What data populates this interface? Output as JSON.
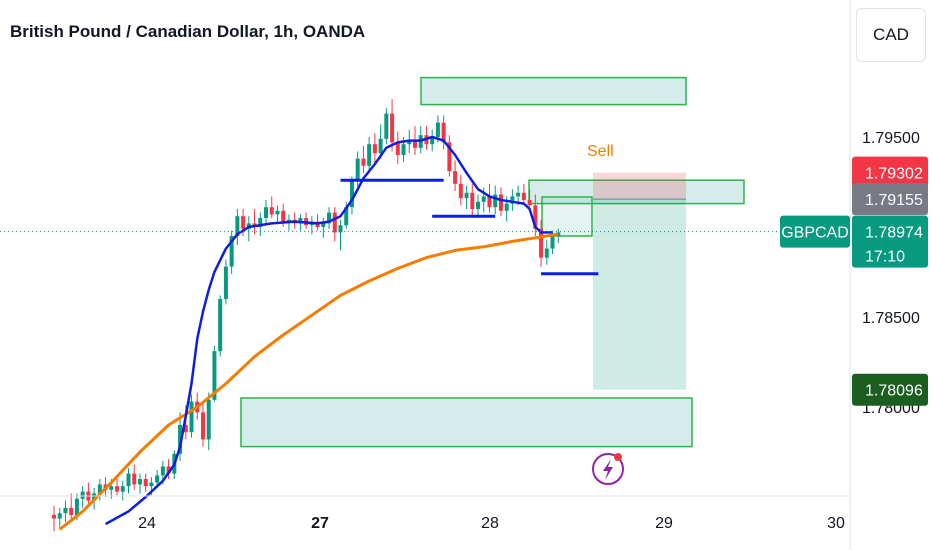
{
  "header": {
    "title": "British Pound / Canadian Dollar, 1h, OANDA",
    "currency": "CAD"
  },
  "chart_data": {
    "type": "candlestick",
    "symbol": "GBPCAD",
    "ylim": [
      1.7735,
      1.7993
    ],
    "y_ticks": [
      "1.79500",
      "1.78500",
      "1.78000"
    ],
    "x_ticks": [
      {
        "label": "24",
        "bold": false
      },
      {
        "label": "27",
        "bold": true
      },
      {
        "label": "28",
        "bold": false
      },
      {
        "label": "29",
        "bold": false
      },
      {
        "label": "30",
        "bold": false
      }
    ],
    "price_labels": [
      {
        "name": "stop-price-label",
        "value": "1.79302",
        "price": 1.79302,
        "color": "#f23645"
      },
      {
        "name": "entry-price-label",
        "value": "1.79155",
        "price": 1.79155,
        "color": "#787b86"
      },
      {
        "name": "current-price-label",
        "value": "1.78974",
        "time": "17:10",
        "symbol": "GBPCAD",
        "price": 1.78974,
        "color": "#089981"
      },
      {
        "name": "target-price-label",
        "value": "1.78096",
        "price": 1.78096,
        "color": "#1b5e20"
      }
    ],
    "annotations": [
      {
        "name": "sell-annotation",
        "text": "Sell",
        "color": "#f57c00"
      }
    ],
    "zones": [
      {
        "name": "supply-zone-top",
        "price_top": 1.7983,
        "price_bottom": 1.7968
      },
      {
        "name": "supply-zone-mid",
        "price_top": 1.7926,
        "price_bottom": 1.7913
      },
      {
        "name": "demand-zone-bottom",
        "price_top": 1.7805,
        "price_bottom": 1.7778
      }
    ],
    "position": {
      "type": "short",
      "entry": 1.79155,
      "stop": 1.79302,
      "target": 1.78096
    },
    "candles": [
      [
        1.774,
        1.7745,
        1.7731,
        1.7738
      ],
      [
        1.7738,
        1.7744,
        1.7733,
        1.7741
      ],
      [
        1.7741,
        1.7748,
        1.7736,
        1.7744
      ],
      [
        1.7744,
        1.7752,
        1.7738,
        1.774
      ],
      [
        1.774,
        1.7752,
        1.7737,
        1.7749
      ],
      [
        1.7749,
        1.7756,
        1.7744,
        1.7753
      ],
      [
        1.7753,
        1.7758,
        1.7745,
        1.7748
      ],
      [
        1.7748,
        1.7755,
        1.7743,
        1.7752
      ],
      [
        1.7752,
        1.776,
        1.7748,
        1.7757
      ],
      [
        1.7757,
        1.7761,
        1.775,
        1.7754
      ],
      [
        1.7754,
        1.776,
        1.7749,
        1.7756
      ],
      [
        1.7756,
        1.7762,
        1.7751,
        1.7753
      ],
      [
        1.7753,
        1.7759,
        1.7748,
        1.7756
      ],
      [
        1.7756,
        1.7766,
        1.7752,
        1.7763
      ],
      [
        1.7763,
        1.7768,
        1.7754,
        1.7757
      ],
      [
        1.7757,
        1.7763,
        1.7752,
        1.776
      ],
      [
        1.776,
        1.7763,
        1.7753,
        1.7756
      ],
      [
        1.7756,
        1.7761,
        1.7751,
        1.7758
      ],
      [
        1.7758,
        1.7765,
        1.7755,
        1.7762
      ],
      [
        1.7762,
        1.777,
        1.7757,
        1.7767
      ],
      [
        1.7767,
        1.7771,
        1.776,
        1.7763
      ],
      [
        1.7763,
        1.7776,
        1.776,
        1.7774
      ],
      [
        1.7774,
        1.7797,
        1.777,
        1.779
      ],
      [
        1.779,
        1.7801,
        1.7782,
        1.7786
      ],
      [
        1.7786,
        1.7807,
        1.7783,
        1.7803
      ],
      [
        1.7803,
        1.7808,
        1.7793,
        1.7797
      ],
      [
        1.7797,
        1.7803,
        1.7778,
        1.7782
      ],
      [
        1.7782,
        1.7808,
        1.7776,
        1.7804
      ],
      [
        1.7804,
        1.7834,
        1.7803,
        1.7831
      ],
      [
        1.7831,
        1.7862,
        1.7828,
        1.786
      ],
      [
        1.786,
        1.7882,
        1.7857,
        1.7878
      ],
      [
        1.7878,
        1.7898,
        1.7874,
        1.7895
      ],
      [
        1.7895,
        1.791,
        1.789,
        1.7906
      ],
      [
        1.7906,
        1.791,
        1.7895,
        1.7899
      ],
      [
        1.7899,
        1.7906,
        1.7892,
        1.7902
      ],
      [
        1.7902,
        1.791,
        1.7896,
        1.79
      ],
      [
        1.79,
        1.7908,
        1.7895,
        1.7905
      ],
      [
        1.7905,
        1.7915,
        1.7902,
        1.7911
      ],
      [
        1.7911,
        1.7917,
        1.7905,
        1.7907
      ],
      [
        1.7907,
        1.7912,
        1.7902,
        1.7909
      ],
      [
        1.7909,
        1.7913,
        1.79,
        1.7903
      ],
      [
        1.7903,
        1.7907,
        1.7898,
        1.7904
      ],
      [
        1.7904,
        1.7908,
        1.7899,
        1.7902
      ],
      [
        1.7902,
        1.7907,
        1.7898,
        1.7905
      ],
      [
        1.7905,
        1.7908,
        1.7899,
        1.7901
      ],
      [
        1.7901,
        1.7906,
        1.7896,
        1.7903
      ],
      [
        1.7903,
        1.7907,
        1.7898,
        1.79
      ],
      [
        1.79,
        1.7905,
        1.7894,
        1.7902
      ],
      [
        1.7902,
        1.7911,
        1.7899,
        1.7908
      ],
      [
        1.7908,
        1.7911,
        1.7892,
        1.7897
      ],
      [
        1.7897,
        1.7904,
        1.7887,
        1.7901
      ],
      [
        1.7901,
        1.7914,
        1.7899,
        1.7911
      ],
      [
        1.7911,
        1.7928,
        1.7907,
        1.7926
      ],
      [
        1.7926,
        1.7942,
        1.7922,
        1.7938
      ],
      [
        1.7938,
        1.7945,
        1.793,
        1.7934
      ],
      [
        1.7934,
        1.795,
        1.793,
        1.7946
      ],
      [
        1.7946,
        1.7952,
        1.7935,
        1.7941
      ],
      [
        1.7941,
        1.7957,
        1.7938,
        1.7949
      ],
      [
        1.7949,
        1.7966,
        1.7946,
        1.7963
      ],
      [
        1.7963,
        1.7971,
        1.7942,
        1.7947
      ],
      [
        1.7947,
        1.7953,
        1.7935,
        1.794
      ],
      [
        1.794,
        1.795,
        1.7936,
        1.7946
      ],
      [
        1.7946,
        1.7954,
        1.7941,
        1.7948
      ],
      [
        1.7948,
        1.7956,
        1.794,
        1.7944
      ],
      [
        1.7944,
        1.7956,
        1.7941,
        1.7951
      ],
      [
        1.7951,
        1.7956,
        1.7943,
        1.7946
      ],
      [
        1.7946,
        1.7954,
        1.7942,
        1.795
      ],
      [
        1.795,
        1.7962,
        1.7947,
        1.7958
      ],
      [
        1.7958,
        1.7962,
        1.7943,
        1.7947
      ],
      [
        1.7947,
        1.7951,
        1.7928,
        1.7931
      ],
      [
        1.7931,
        1.7937,
        1.792,
        1.7924
      ],
      [
        1.7924,
        1.7929,
        1.7912,
        1.7916
      ],
      [
        1.7916,
        1.7923,
        1.791,
        1.7919
      ],
      [
        1.7919,
        1.7924,
        1.7906,
        1.791
      ],
      [
        1.791,
        1.7918,
        1.7905,
        1.7914
      ],
      [
        1.7914,
        1.7922,
        1.7908,
        1.7917
      ],
      [
        1.7917,
        1.7924,
        1.7908,
        1.7911
      ],
      [
        1.7911,
        1.7923,
        1.7907,
        1.7918
      ],
      [
        1.7918,
        1.7922,
        1.7906,
        1.7909
      ],
      [
        1.7909,
        1.7917,
        1.7903,
        1.7913
      ],
      [
        1.7913,
        1.7921,
        1.7909,
        1.7917
      ],
      [
        1.7917,
        1.7923,
        1.7912,
        1.7919
      ],
      [
        1.7919,
        1.7924,
        1.7912,
        1.7915
      ],
      [
        1.7915,
        1.7921,
        1.7909,
        1.7912
      ],
      [
        1.7912,
        1.7918,
        1.7895,
        1.7899
      ],
      [
        1.7899,
        1.7904,
        1.7878,
        1.7883
      ],
      [
        1.7883,
        1.7893,
        1.7879,
        1.7888
      ],
      [
        1.7888,
        1.7898,
        1.7885,
        1.7895
      ],
      [
        1.7895,
        1.7899,
        1.7891,
        1.7897
      ]
    ],
    "series": [
      {
        "name": "",
        "color": "#f57c00",
        "values": [
          [
            1,
            1.7732
          ],
          [
            5,
            1.7742
          ],
          [
            10,
            1.7758
          ],
          [
            15,
            1.7775
          ],
          [
            20,
            1.779
          ],
          [
            25,
            1.78
          ],
          [
            30,
            1.7813
          ],
          [
            35,
            1.7828
          ],
          [
            40,
            1.784
          ],
          [
            45,
            1.7851
          ],
          [
            50,
            1.7862
          ],
          [
            55,
            1.787
          ],
          [
            60,
            1.7877
          ],
          [
            65,
            1.7883
          ],
          [
            70,
            1.7887
          ],
          [
            75,
            1.7889
          ],
          [
            80,
            1.7892
          ],
          [
            84,
            1.7894
          ],
          [
            88,
            1.7896
          ]
        ]
      },
      {
        "name": "",
        "color": "#0d1fdc",
        "values": [
          [
            9,
            1.7735
          ],
          [
            13,
            1.7742
          ],
          [
            16,
            1.775
          ],
          [
            19,
            1.7759
          ],
          [
            21,
            1.7768
          ],
          [
            22,
            1.7778
          ],
          [
            23,
            1.7795
          ],
          [
            24,
            1.7813
          ],
          [
            25,
            1.7838
          ],
          [
            26,
            1.7853
          ],
          [
            27,
            1.7865
          ],
          [
            28,
            1.7875
          ],
          [
            30,
            1.7888
          ],
          [
            32,
            1.7896
          ],
          [
            34,
            1.79
          ],
          [
            38,
            1.7902
          ],
          [
            42,
            1.7903
          ],
          [
            46,
            1.7902
          ],
          [
            48,
            1.7903
          ],
          [
            50,
            1.7906
          ],
          [
            52,
            1.7915
          ],
          [
            54,
            1.7927
          ],
          [
            56,
            1.7935
          ],
          [
            58,
            1.7944
          ],
          [
            60,
            1.7947
          ],
          [
            62,
            1.7948
          ],
          [
            64,
            1.7948
          ],
          [
            66,
            1.795
          ],
          [
            68,
            1.7948
          ],
          [
            70,
            1.794
          ],
          [
            72,
            1.793
          ],
          [
            74,
            1.7921
          ],
          [
            76,
            1.7917
          ],
          [
            78,
            1.7915
          ],
          [
            80,
            1.7914
          ],
          [
            82,
            1.7913
          ],
          [
            83,
            1.791
          ],
          [
            84,
            1.79
          ],
          [
            85,
            1.7897
          ],
          [
            87,
            1.7897
          ]
        ]
      }
    ],
    "levels": [
      {
        "name": "level-line-1",
        "price": 1.7926,
        "from": 50,
        "to": 68
      },
      {
        "name": "level-line-2",
        "price": 1.7906,
        "from": 66,
        "to": 77
      },
      {
        "name": "level-line-3",
        "price": 1.7874,
        "from": 85,
        "to": 95
      }
    ]
  }
}
